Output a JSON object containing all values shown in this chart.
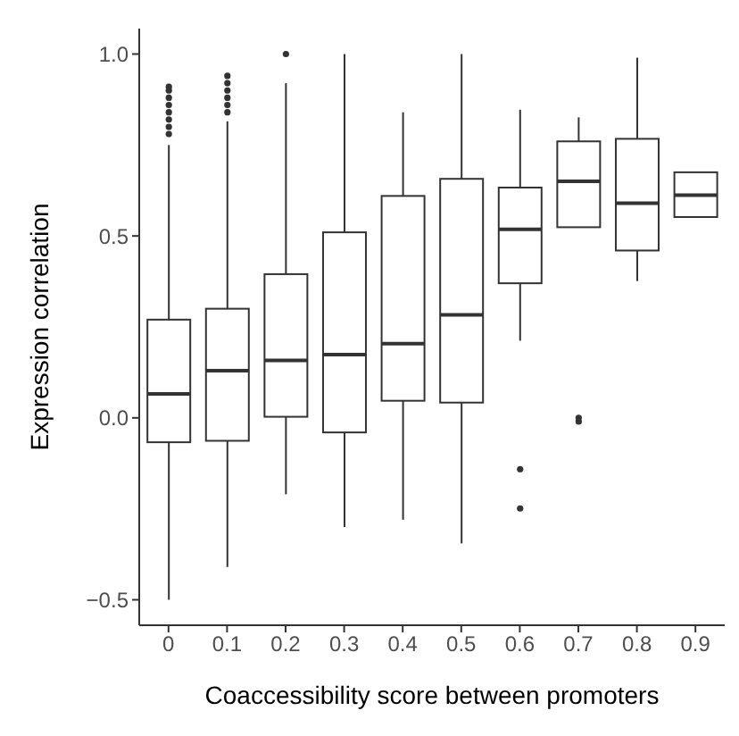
{
  "chart_data": {
    "type": "box",
    "xlabel": "Coaccessibility score between promoters",
    "ylabel": "Expression correlation",
    "categories": [
      "0",
      "0.1",
      "0.2",
      "0.3",
      "0.4",
      "0.5",
      "0.6",
      "0.7",
      "0.8",
      "0.9"
    ],
    "boxes": [
      {
        "low": -0.5,
        "q1": -0.067,
        "median": 0.066,
        "q3": 0.27,
        "high": 0.75,
        "outliers": [
          0.78,
          0.8,
          0.82,
          0.84,
          0.86,
          0.88,
          0.9,
          0.91
        ]
      },
      {
        "low": -0.41,
        "q1": -0.063,
        "median": 0.13,
        "q3": 0.3,
        "high": 0.815,
        "outliers": [
          0.84,
          0.86,
          0.88,
          0.9,
          0.92,
          0.94
        ]
      },
      {
        "low": -0.21,
        "q1": 0.003,
        "median": 0.158,
        "q3": 0.395,
        "high": 0.92,
        "outliers": [
          1.0
        ]
      },
      {
        "low": -0.3,
        "q1": -0.04,
        "median": 0.174,
        "q3": 0.51,
        "high": 1.0
      },
      {
        "low": -0.28,
        "q1": 0.047,
        "median": 0.204,
        "q3": 0.61,
        "high": 0.84
      },
      {
        "low": -0.345,
        "q1": 0.042,
        "median": 0.283,
        "q3": 0.657,
        "high": 1.0
      },
      {
        "low": 0.212,
        "q1": 0.37,
        "median": 0.518,
        "q3": 0.633,
        "high": 0.847,
        "outliers": [
          -0.141,
          -0.249
        ]
      },
      {
        "low": 0.524,
        "q1": 0.524,
        "median": 0.65,
        "q3": 0.76,
        "high": 0.826,
        "outliers": [
          -0.01,
          0.0
        ]
      },
      {
        "low": 0.376,
        "q1": 0.46,
        "median": 0.59,
        "q3": 0.767,
        "high": 0.99
      },
      {
        "low": 0.552,
        "q1": 0.552,
        "median": 0.612,
        "q3": 0.675,
        "high": 0.675
      }
    ],
    "ylim": [
      -0.57,
      1.07
    ],
    "yticks": [
      {
        "value": -0.5,
        "label": "−0.5"
      },
      {
        "value": 0,
        "label": "0.0"
      },
      {
        "value": 0.5,
        "label": "0.5"
      },
      {
        "value": 1,
        "label": "1.0"
      }
    ]
  }
}
